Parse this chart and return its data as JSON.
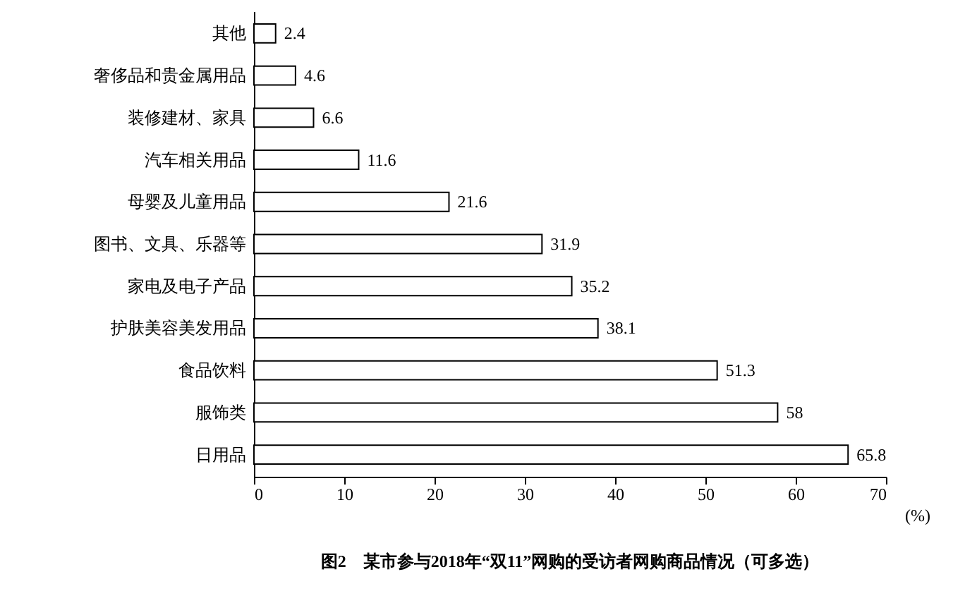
{
  "chart_data": {
    "type": "bar",
    "orientation": "horizontal",
    "title": "图2　某市参与2018年“双11”网购的受访者网购商品情况（可多选）",
    "xlabel": "(%)",
    "categories": [
      "其他",
      "奢侈品和贵金属用品",
      "装修建材、家具",
      "汽车相关用品",
      "母婴及儿童用品",
      "图书、文具、乐器等",
      "家电及电子产品",
      "护肤美容美发用品",
      "食品饮料",
      "服饰类",
      "日用品"
    ],
    "values": [
      2.4,
      4.6,
      6.6,
      11.6,
      21.6,
      31.9,
      35.2,
      38.1,
      51.3,
      58,
      65.8
    ],
    "color": "#ffffff",
    "xlim": [
      0,
      70
    ],
    "xticks": [
      0,
      10,
      20,
      30,
      40,
      50,
      60,
      70
    ],
    "grid": false,
    "data_labels": true
  }
}
